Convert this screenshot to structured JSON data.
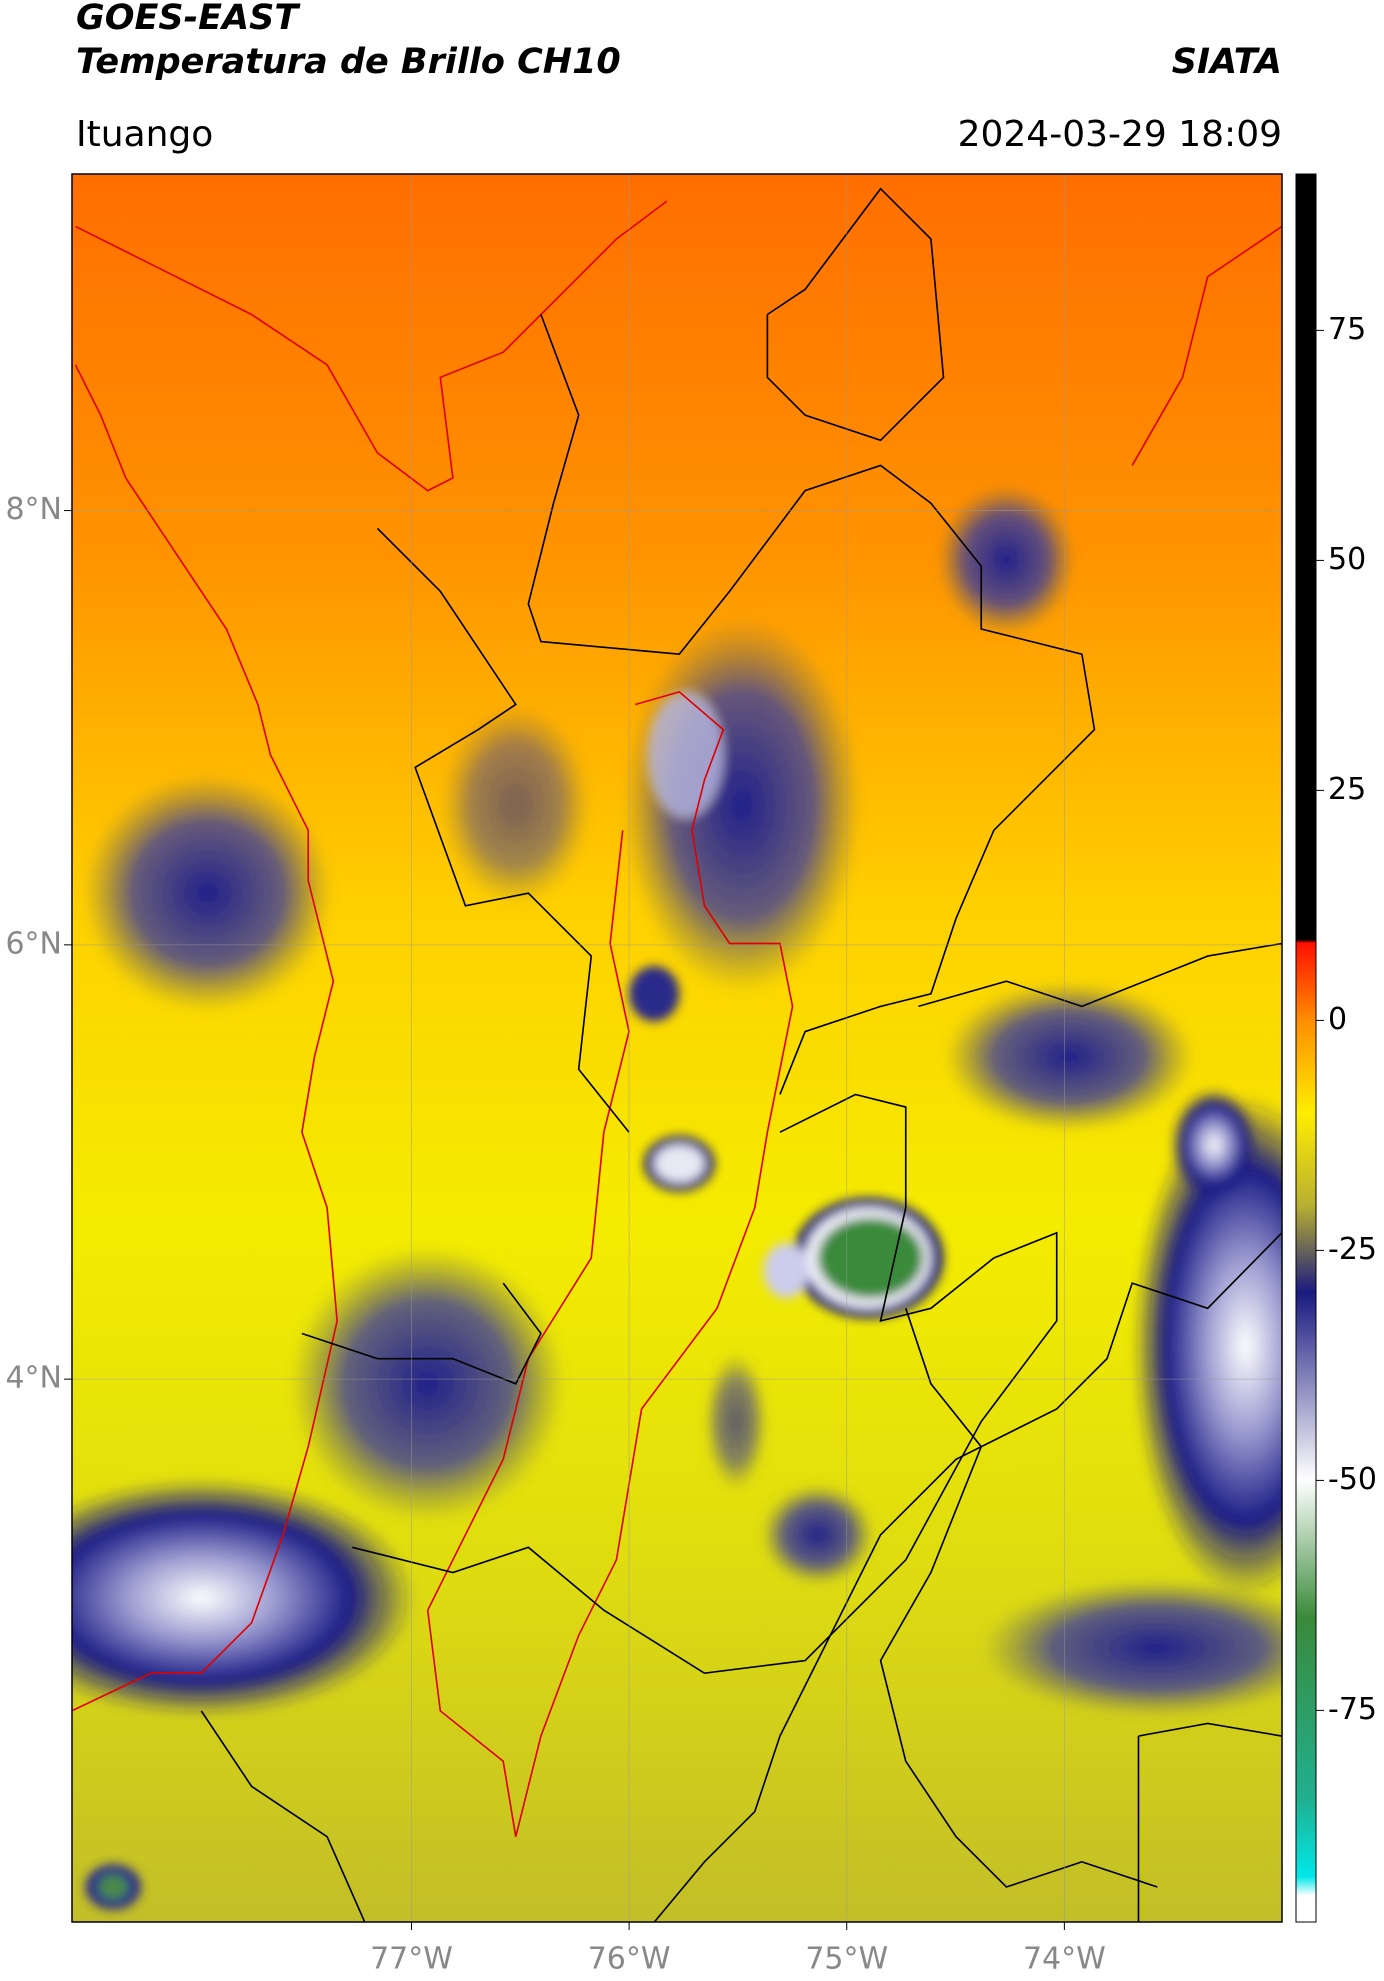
{
  "header": {
    "title": "GOES-EAST",
    "subtitle": "Temperatura de Brillo CH10",
    "source": "SIATA",
    "location": "Ituango",
    "timestamp": "2024-03-29 18:09"
  },
  "map": {
    "xlim": [
      -78.56,
      -73.0
    ],
    "ylim": [
      1.5,
      9.55
    ],
    "xticks": [
      {
        "value": -77,
        "label": "77°W"
      },
      {
        "value": -76,
        "label": "76°W"
      },
      {
        "value": -75,
        "label": "75°W"
      },
      {
        "value": -74,
        "label": "74°W"
      }
    ],
    "yticks": [
      {
        "value": 8,
        "label": "8°N"
      },
      {
        "value": 6,
        "label": "6°N"
      },
      {
        "value": 4,
        "label": "4°N"
      }
    ],
    "grid": true
  },
  "colorbar": {
    "clim": [
      -98,
      92
    ],
    "ticks": [
      75,
      50,
      25,
      0,
      -25,
      -50,
      -75
    ]
  }
}
